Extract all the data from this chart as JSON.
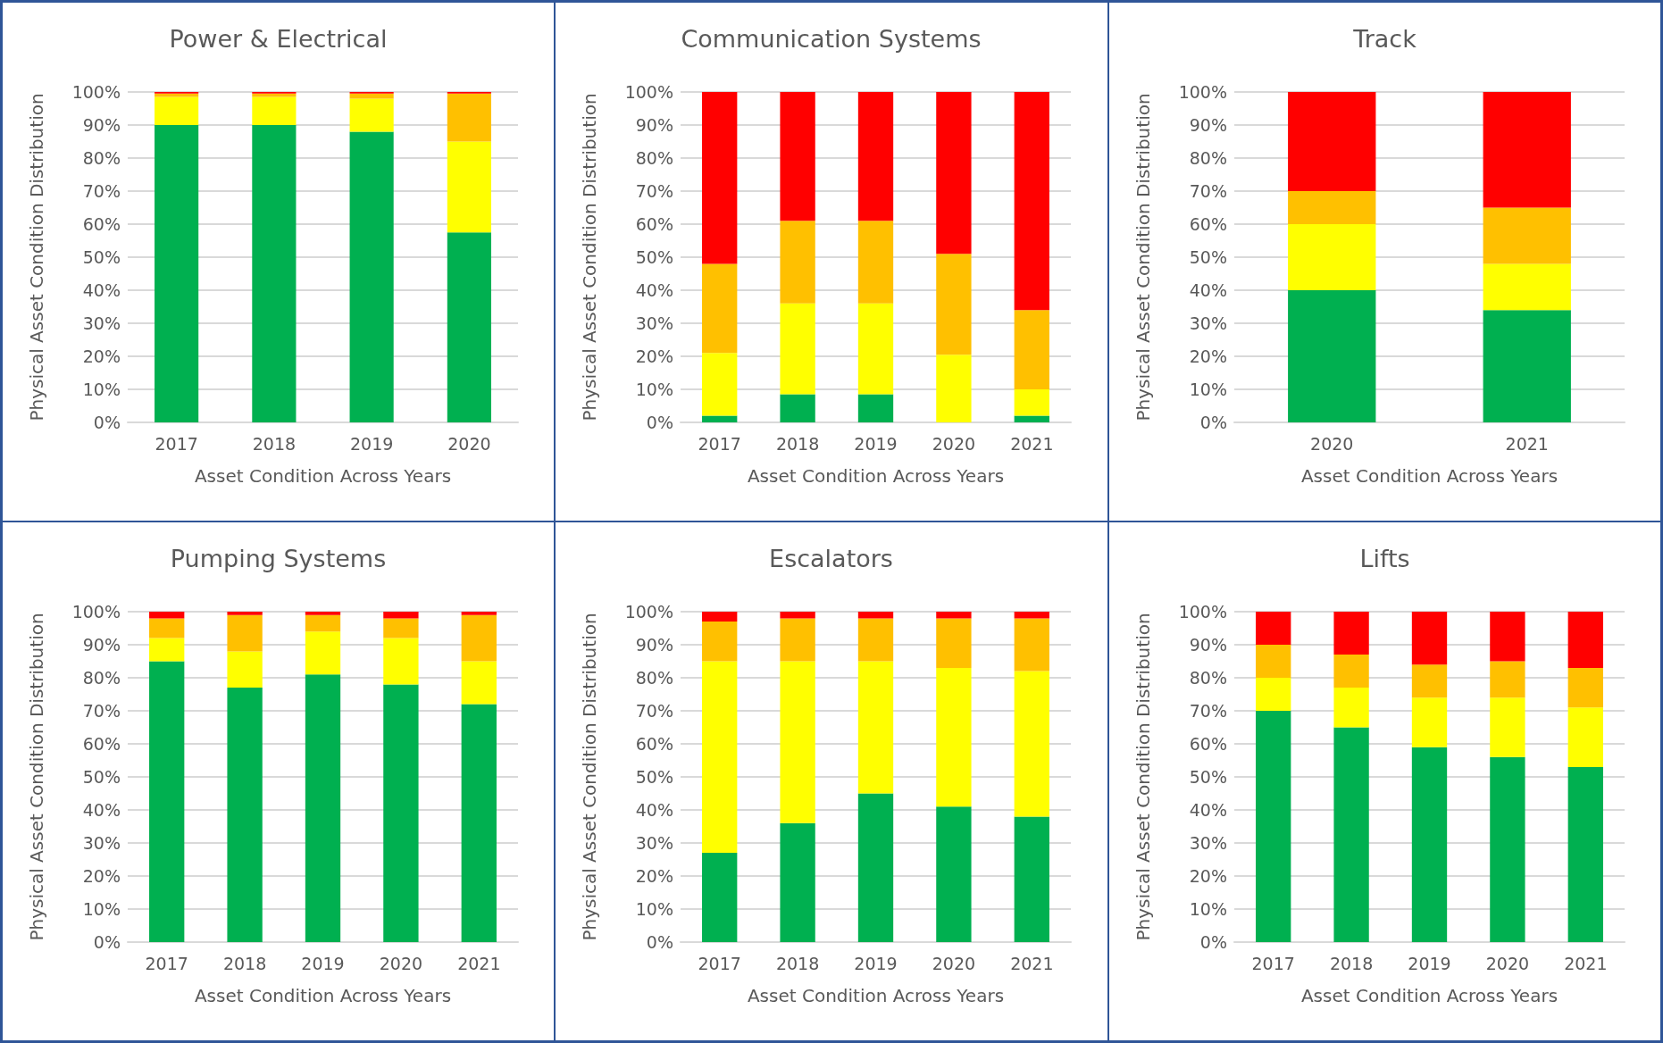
{
  "chart_data": [
    {
      "type": "bar",
      "stacked": true,
      "title": "Power & Electrical",
      "xlabel": "Asset Condition Across Years",
      "ylabel": "Physical Asset Condition Distribution",
      "categories": [
        "2017",
        "2018",
        "2019",
        "2020"
      ],
      "ylim": [
        0,
        100
      ],
      "yticks": [
        {
          "value": 0,
          "label": "0%"
        },
        {
          "value": 10,
          "label": "10%"
        },
        {
          "value": 20,
          "label": "20%"
        },
        {
          "value": 30,
          "label": "30%"
        },
        {
          "value": 40,
          "label": "40%"
        },
        {
          "value": 50,
          "label": "50%"
        },
        {
          "value": 60,
          "label": "60%"
        },
        {
          "value": 70,
          "label": "70%"
        },
        {
          "value": 80,
          "label": "80%"
        },
        {
          "value": 90,
          "label": "90%"
        },
        {
          "value": 100,
          "label": "100%"
        }
      ],
      "grid": "y",
      "series": [
        {
          "color": "#00b050",
          "values": [
            90,
            90,
            88,
            57.5
          ]
        },
        {
          "color": "#ffff00",
          "values": [
            8.5,
            8.5,
            10,
            27.5
          ]
        },
        {
          "color": "#ffc000",
          "values": [
            1,
            1,
            1.5,
            14.5
          ]
        },
        {
          "color": "#ff0000",
          "values": [
            0.5,
            0.5,
            0.5,
            0.5
          ]
        }
      ]
    },
    {
      "type": "bar",
      "stacked": true,
      "title": "Communication Systems",
      "xlabel": "Asset Condition Across Years",
      "ylabel": "Physical Asset Condition Distribution",
      "categories": [
        "2017",
        "2018",
        "2019",
        "2020",
        "2021"
      ],
      "ylim": [
        0,
        100
      ],
      "yticks": [
        {
          "value": 0,
          "label": "0%"
        },
        {
          "value": 10,
          "label": "10%"
        },
        {
          "value": 20,
          "label": "20%"
        },
        {
          "value": 30,
          "label": "30%"
        },
        {
          "value": 40,
          "label": "40%"
        },
        {
          "value": 50,
          "label": "50%"
        },
        {
          "value": 60,
          "label": "60%"
        },
        {
          "value": 70,
          "label": "70%"
        },
        {
          "value": 80,
          "label": "80%"
        },
        {
          "value": 90,
          "label": "90%"
        },
        {
          "value": 100,
          "label": "100%"
        }
      ],
      "grid": "y",
      "series": [
        {
          "color": "#00b050",
          "values": [
            2,
            8.5,
            8.5,
            0,
            2
          ]
        },
        {
          "color": "#ffff00",
          "values": [
            19,
            27.5,
            27.5,
            20.5,
            8
          ]
        },
        {
          "color": "#ffc000",
          "values": [
            27,
            25,
            25,
            30.5,
            24
          ]
        },
        {
          "color": "#ff0000",
          "values": [
            52,
            39,
            39,
            49,
            66
          ]
        }
      ]
    },
    {
      "type": "bar",
      "stacked": true,
      "title": "Track",
      "xlabel": "Asset Condition Across Years",
      "ylabel": "Physical Asset Condition Distribution",
      "categories": [
        "2020",
        "2021"
      ],
      "ylim": [
        0,
        100
      ],
      "yticks": [
        {
          "value": 0,
          "label": "0%"
        },
        {
          "value": 10,
          "label": "10%"
        },
        {
          "value": 20,
          "label": "20%"
        },
        {
          "value": 30,
          "label": "30%"
        },
        {
          "value": 40,
          "label": "40%"
        },
        {
          "value": 50,
          "label": "50%"
        },
        {
          "value": 60,
          "label": "60%"
        },
        {
          "value": 70,
          "label": "70%"
        },
        {
          "value": 80,
          "label": "80%"
        },
        {
          "value": 90,
          "label": "90%"
        },
        {
          "value": 100,
          "label": "100%"
        }
      ],
      "grid": "y",
      "series": [
        {
          "color": "#00b050",
          "values": [
            40,
            34
          ]
        },
        {
          "color": "#ffff00",
          "values": [
            20,
            14
          ]
        },
        {
          "color": "#ffc000",
          "values": [
            10,
            17
          ]
        },
        {
          "color": "#ff0000",
          "values": [
            30,
            35
          ]
        }
      ]
    },
    {
      "type": "bar",
      "stacked": true,
      "title": "Pumping Systems",
      "xlabel": "Asset Condition Across Years",
      "ylabel": "Physical Asset Condition Distribution",
      "categories": [
        "2017",
        "2018",
        "2019",
        "2020",
        "2021"
      ],
      "ylim": [
        0,
        100
      ],
      "yticks": [
        {
          "value": 0,
          "label": "0%"
        },
        {
          "value": 10,
          "label": "10%"
        },
        {
          "value": 20,
          "label": "20%"
        },
        {
          "value": 30,
          "label": "30%"
        },
        {
          "value": 40,
          "label": "40%"
        },
        {
          "value": 50,
          "label": "50%"
        },
        {
          "value": 60,
          "label": "60%"
        },
        {
          "value": 70,
          "label": "70%"
        },
        {
          "value": 80,
          "label": "80%"
        },
        {
          "value": 90,
          "label": "90%"
        },
        {
          "value": 100,
          "label": "100%"
        }
      ],
      "grid": "y",
      "series": [
        {
          "color": "#00b050",
          "values": [
            85,
            77,
            81,
            78,
            72
          ]
        },
        {
          "color": "#ffff00",
          "values": [
            7,
            11,
            13,
            14,
            13
          ]
        },
        {
          "color": "#ffc000",
          "values": [
            6,
            11,
            5,
            6,
            14
          ]
        },
        {
          "color": "#ff0000",
          "values": [
            2,
            1,
            1,
            2,
            1
          ]
        }
      ]
    },
    {
      "type": "bar",
      "stacked": true,
      "title": "Escalators",
      "xlabel": "Asset Condition Across Years",
      "ylabel": "Physical Asset Condition Distribution",
      "categories": [
        "2017",
        "2018",
        "2019",
        "2020",
        "2021"
      ],
      "ylim": [
        0,
        100
      ],
      "yticks": [
        {
          "value": 0,
          "label": "0%"
        },
        {
          "value": 10,
          "label": "10%"
        },
        {
          "value": 20,
          "label": "20%"
        },
        {
          "value": 30,
          "label": "30%"
        },
        {
          "value": 40,
          "label": "40%"
        },
        {
          "value": 50,
          "label": "50%"
        },
        {
          "value": 60,
          "label": "60%"
        },
        {
          "value": 70,
          "label": "70%"
        },
        {
          "value": 80,
          "label": "80%"
        },
        {
          "value": 90,
          "label": "90%"
        },
        {
          "value": 100,
          "label": "100%"
        }
      ],
      "grid": "y",
      "series": [
        {
          "color": "#00b050",
          "values": [
            27,
            36,
            45,
            41,
            38
          ]
        },
        {
          "color": "#ffff00",
          "values": [
            58,
            49,
            40,
            42,
            44
          ]
        },
        {
          "color": "#ffc000",
          "values": [
            12,
            13,
            13,
            15,
            16
          ]
        },
        {
          "color": "#ff0000",
          "values": [
            3,
            2,
            2,
            2,
            2
          ]
        }
      ]
    },
    {
      "type": "bar",
      "stacked": true,
      "title": "Lifts",
      "xlabel": "Asset Condition Across Years",
      "ylabel": "Physical Asset Condition Distribution",
      "categories": [
        "2017",
        "2018",
        "2019",
        "2020",
        "2021"
      ],
      "ylim": [
        0,
        100
      ],
      "yticks": [
        {
          "value": 0,
          "label": "0%"
        },
        {
          "value": 10,
          "label": "10%"
        },
        {
          "value": 20,
          "label": "20%"
        },
        {
          "value": 30,
          "label": "30%"
        },
        {
          "value": 40,
          "label": "40%"
        },
        {
          "value": 50,
          "label": "50%"
        },
        {
          "value": 60,
          "label": "60%"
        },
        {
          "value": 70,
          "label": "70%"
        },
        {
          "value": 80,
          "label": "80%"
        },
        {
          "value": 90,
          "label": "90%"
        },
        {
          "value": 100,
          "label": "100%"
        }
      ],
      "grid": "y",
      "series": [
        {
          "color": "#00b050",
          "values": [
            70,
            65,
            59,
            56,
            53
          ]
        },
        {
          "color": "#ffff00",
          "values": [
            10,
            12,
            15,
            18,
            18
          ]
        },
        {
          "color": "#ffc000",
          "values": [
            10,
            10,
            10,
            11,
            12
          ]
        },
        {
          "color": "#ff0000",
          "values": [
            10,
            13,
            16,
            15,
            17
          ]
        }
      ]
    }
  ]
}
